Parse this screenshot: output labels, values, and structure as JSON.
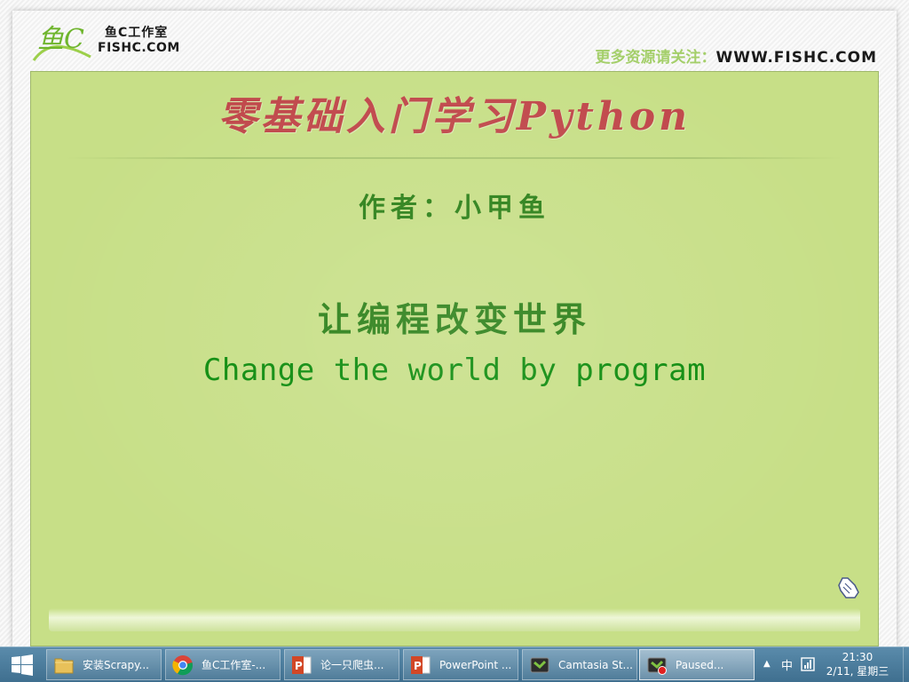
{
  "slide": {
    "logo": {
      "script_mark": "鱼C",
      "cn": "鱼C工作室",
      "en": "FISHC.COM"
    },
    "promo": {
      "cn": "更多资源请关注：",
      "url": "WWW.FISHC.COM"
    },
    "title": "零基础入门学习Python",
    "author": "作者：小甲鱼",
    "slogan_cn": "让编程改变世界",
    "slogan_en": "Change the world by program",
    "colors": {
      "panel_bg": "#c7df87",
      "title": "#c0474a",
      "green_text": "#2a7f16",
      "promo_cn": "#a4cf6a"
    }
  },
  "taskbar": {
    "start_icon": "windows-logo-icon",
    "items": [
      {
        "icon": "folder-icon",
        "label": "安装Scrapy..."
      },
      {
        "icon": "chrome-icon",
        "label": "鱼C工作室-..."
      },
      {
        "icon": "powerpoint-icon",
        "label": "论一只爬虫..."
      },
      {
        "icon": "powerpoint-icon",
        "label": "PowerPoint ..."
      },
      {
        "icon": "camtasia-icon",
        "label": "Camtasia St..."
      },
      {
        "icon": "camtasia-recorder-icon",
        "label": "Paused..."
      }
    ],
    "tray": {
      "arrow": "▲",
      "ime": "中",
      "network_icon": "network-icon"
    },
    "clock": {
      "time": "21:30",
      "date": "2/11, 星期三"
    }
  }
}
